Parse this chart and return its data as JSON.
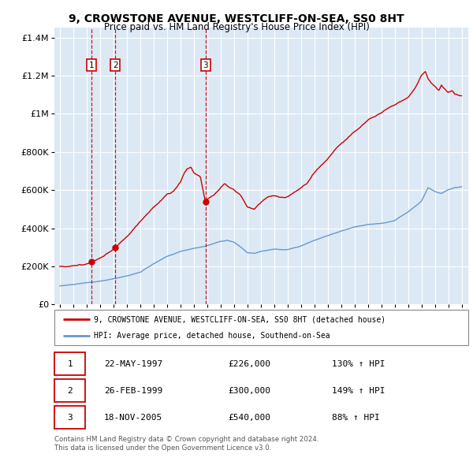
{
  "title1": "9, CROWSTONE AVENUE, WESTCLIFF-ON-SEA, SS0 8HT",
  "title2": "Price paid vs. HM Land Registry's House Price Index (HPI)",
  "bg_color": "#dce9f5",
  "grid_color": "#ffffff",
  "sale_dates_num": [
    1997.388,
    1999.155,
    2005.885
  ],
  "sale_prices": [
    226000,
    300000,
    540000
  ],
  "sale_labels": [
    "1",
    "2",
    "3"
  ],
  "legend_line1": "9, CROWSTONE AVENUE, WESTCLIFF-ON-SEA, SS0 8HT (detached house)",
  "legend_line2": "HPI: Average price, detached house, Southend-on-Sea",
  "table_data": [
    [
      "1",
      "22-MAY-1997",
      "£226,000",
      "130% ↑ HPI"
    ],
    [
      "2",
      "26-FEB-1999",
      "£300,000",
      "149% ↑ HPI"
    ],
    [
      "3",
      "18-NOV-2005",
      "£540,000",
      "88% ↑ HPI"
    ]
  ],
  "footer": "Contains HM Land Registry data © Crown copyright and database right 2024.\nThis data is licensed under the Open Government Licence v3.0.",
  "ylim": [
    0,
    1450000
  ],
  "yticks": [
    0,
    200000,
    400000,
    600000,
    800000,
    1000000,
    1200000,
    1400000
  ],
  "xlim_start": 1994.6,
  "xlim_end": 2025.5,
  "red_color": "#cc0000",
  "blue_color": "#6699cc",
  "dashed_color": "#cc0000"
}
